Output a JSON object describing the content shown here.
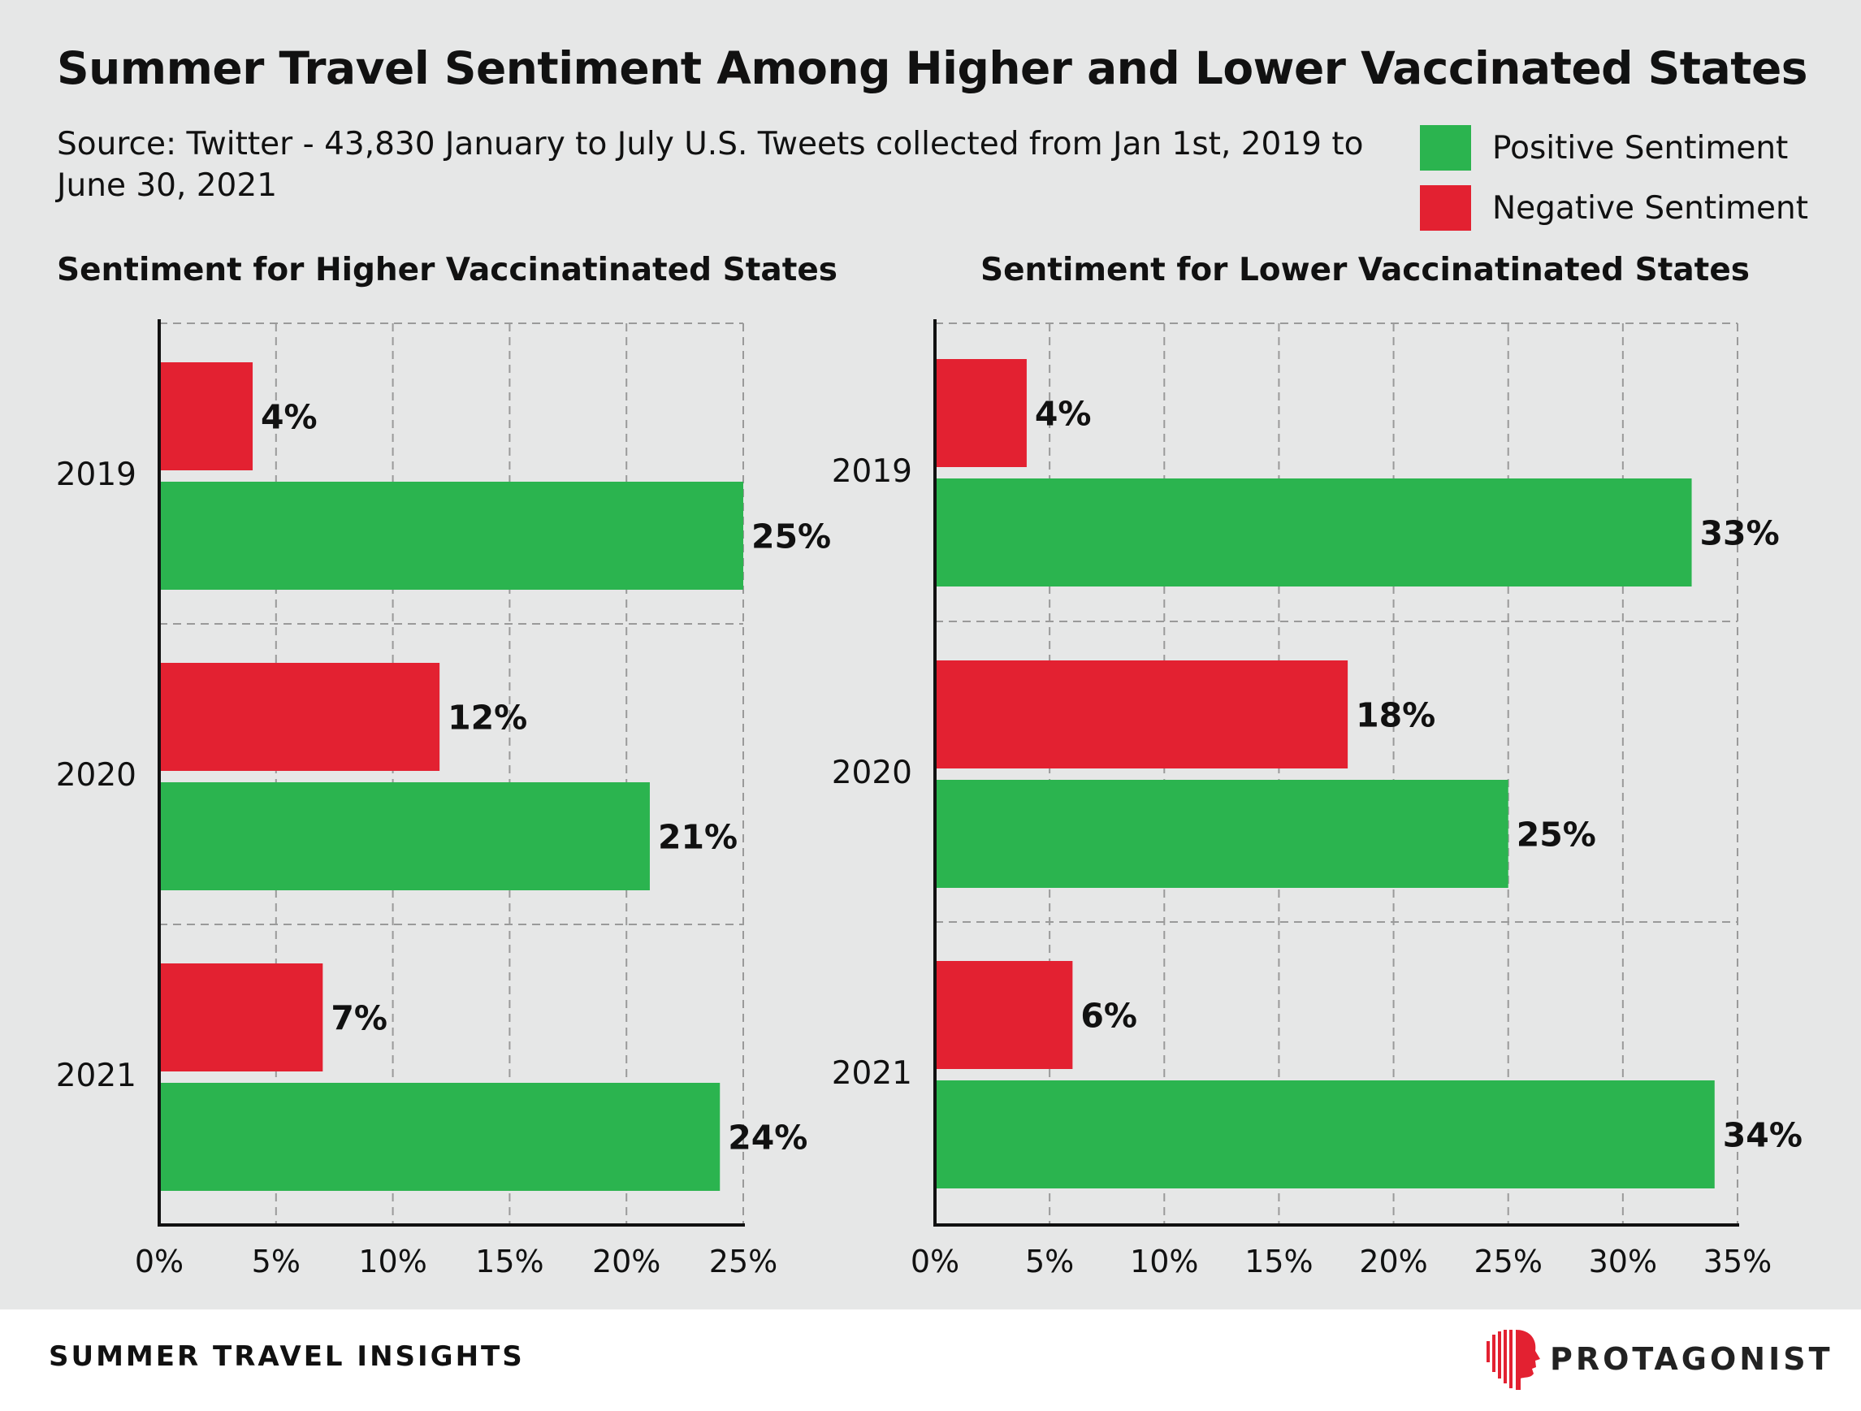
{
  "title": "Summer Travel Sentiment Among Higher and Lower Vaccinated States",
  "subtitle": "Source: Twitter - 43,830 January to July U.S. Tweets collected from Jan 1st, 2019 to June 30, 2021",
  "legend": [
    {
      "label": "Positive Sentiment",
      "color": "#2bb44f"
    },
    {
      "label": "Negative Sentiment",
      "color": "#e32131"
    }
  ],
  "colors": {
    "positive": "#2bb44f",
    "negative": "#e32131",
    "panel": "#e6e7e7"
  },
  "chart_data": [
    {
      "type": "bar",
      "orientation": "horizontal",
      "title": "Sentiment for Higher Vaccinatinated States",
      "categories": [
        "2019",
        "2020",
        "2021"
      ],
      "series": [
        {
          "name": "Negative Sentiment",
          "values": [
            4,
            12,
            7
          ],
          "labels": [
            "4%",
            "12%",
            "7%"
          ]
        },
        {
          "name": "Positive Sentiment",
          "values": [
            25,
            21,
            24
          ],
          "labels": [
            "25%",
            "21%",
            "24%"
          ]
        }
      ],
      "xlim": [
        0,
        25
      ],
      "xticks": [
        "0%",
        "5%",
        "10%",
        "15%",
        "20%",
        "25%"
      ],
      "grid": true
    },
    {
      "type": "bar",
      "orientation": "horizontal",
      "title": "Sentiment for Lower Vaccinatinated States",
      "categories": [
        "2019",
        "2020",
        "2021"
      ],
      "series": [
        {
          "name": "Negative Sentiment",
          "values": [
            4,
            18,
            6
          ],
          "labels": [
            "4%",
            "18%",
            "6%"
          ]
        },
        {
          "name": "Positive Sentiment",
          "values": [
            33,
            25,
            34
          ],
          "labels": [
            "33%",
            "25%",
            "34%"
          ]
        }
      ],
      "xlim": [
        0,
        35
      ],
      "xticks": [
        "0%",
        "5%",
        "10%",
        "15%",
        "20%",
        "25%",
        "30%",
        "35%"
      ],
      "grid": true
    }
  ],
  "footer": {
    "section": "SUMMER TRAVEL INSIGHTS",
    "brand": "PROTAGONIST",
    "brand_logo_icon": "profile-head-logo-icon"
  }
}
